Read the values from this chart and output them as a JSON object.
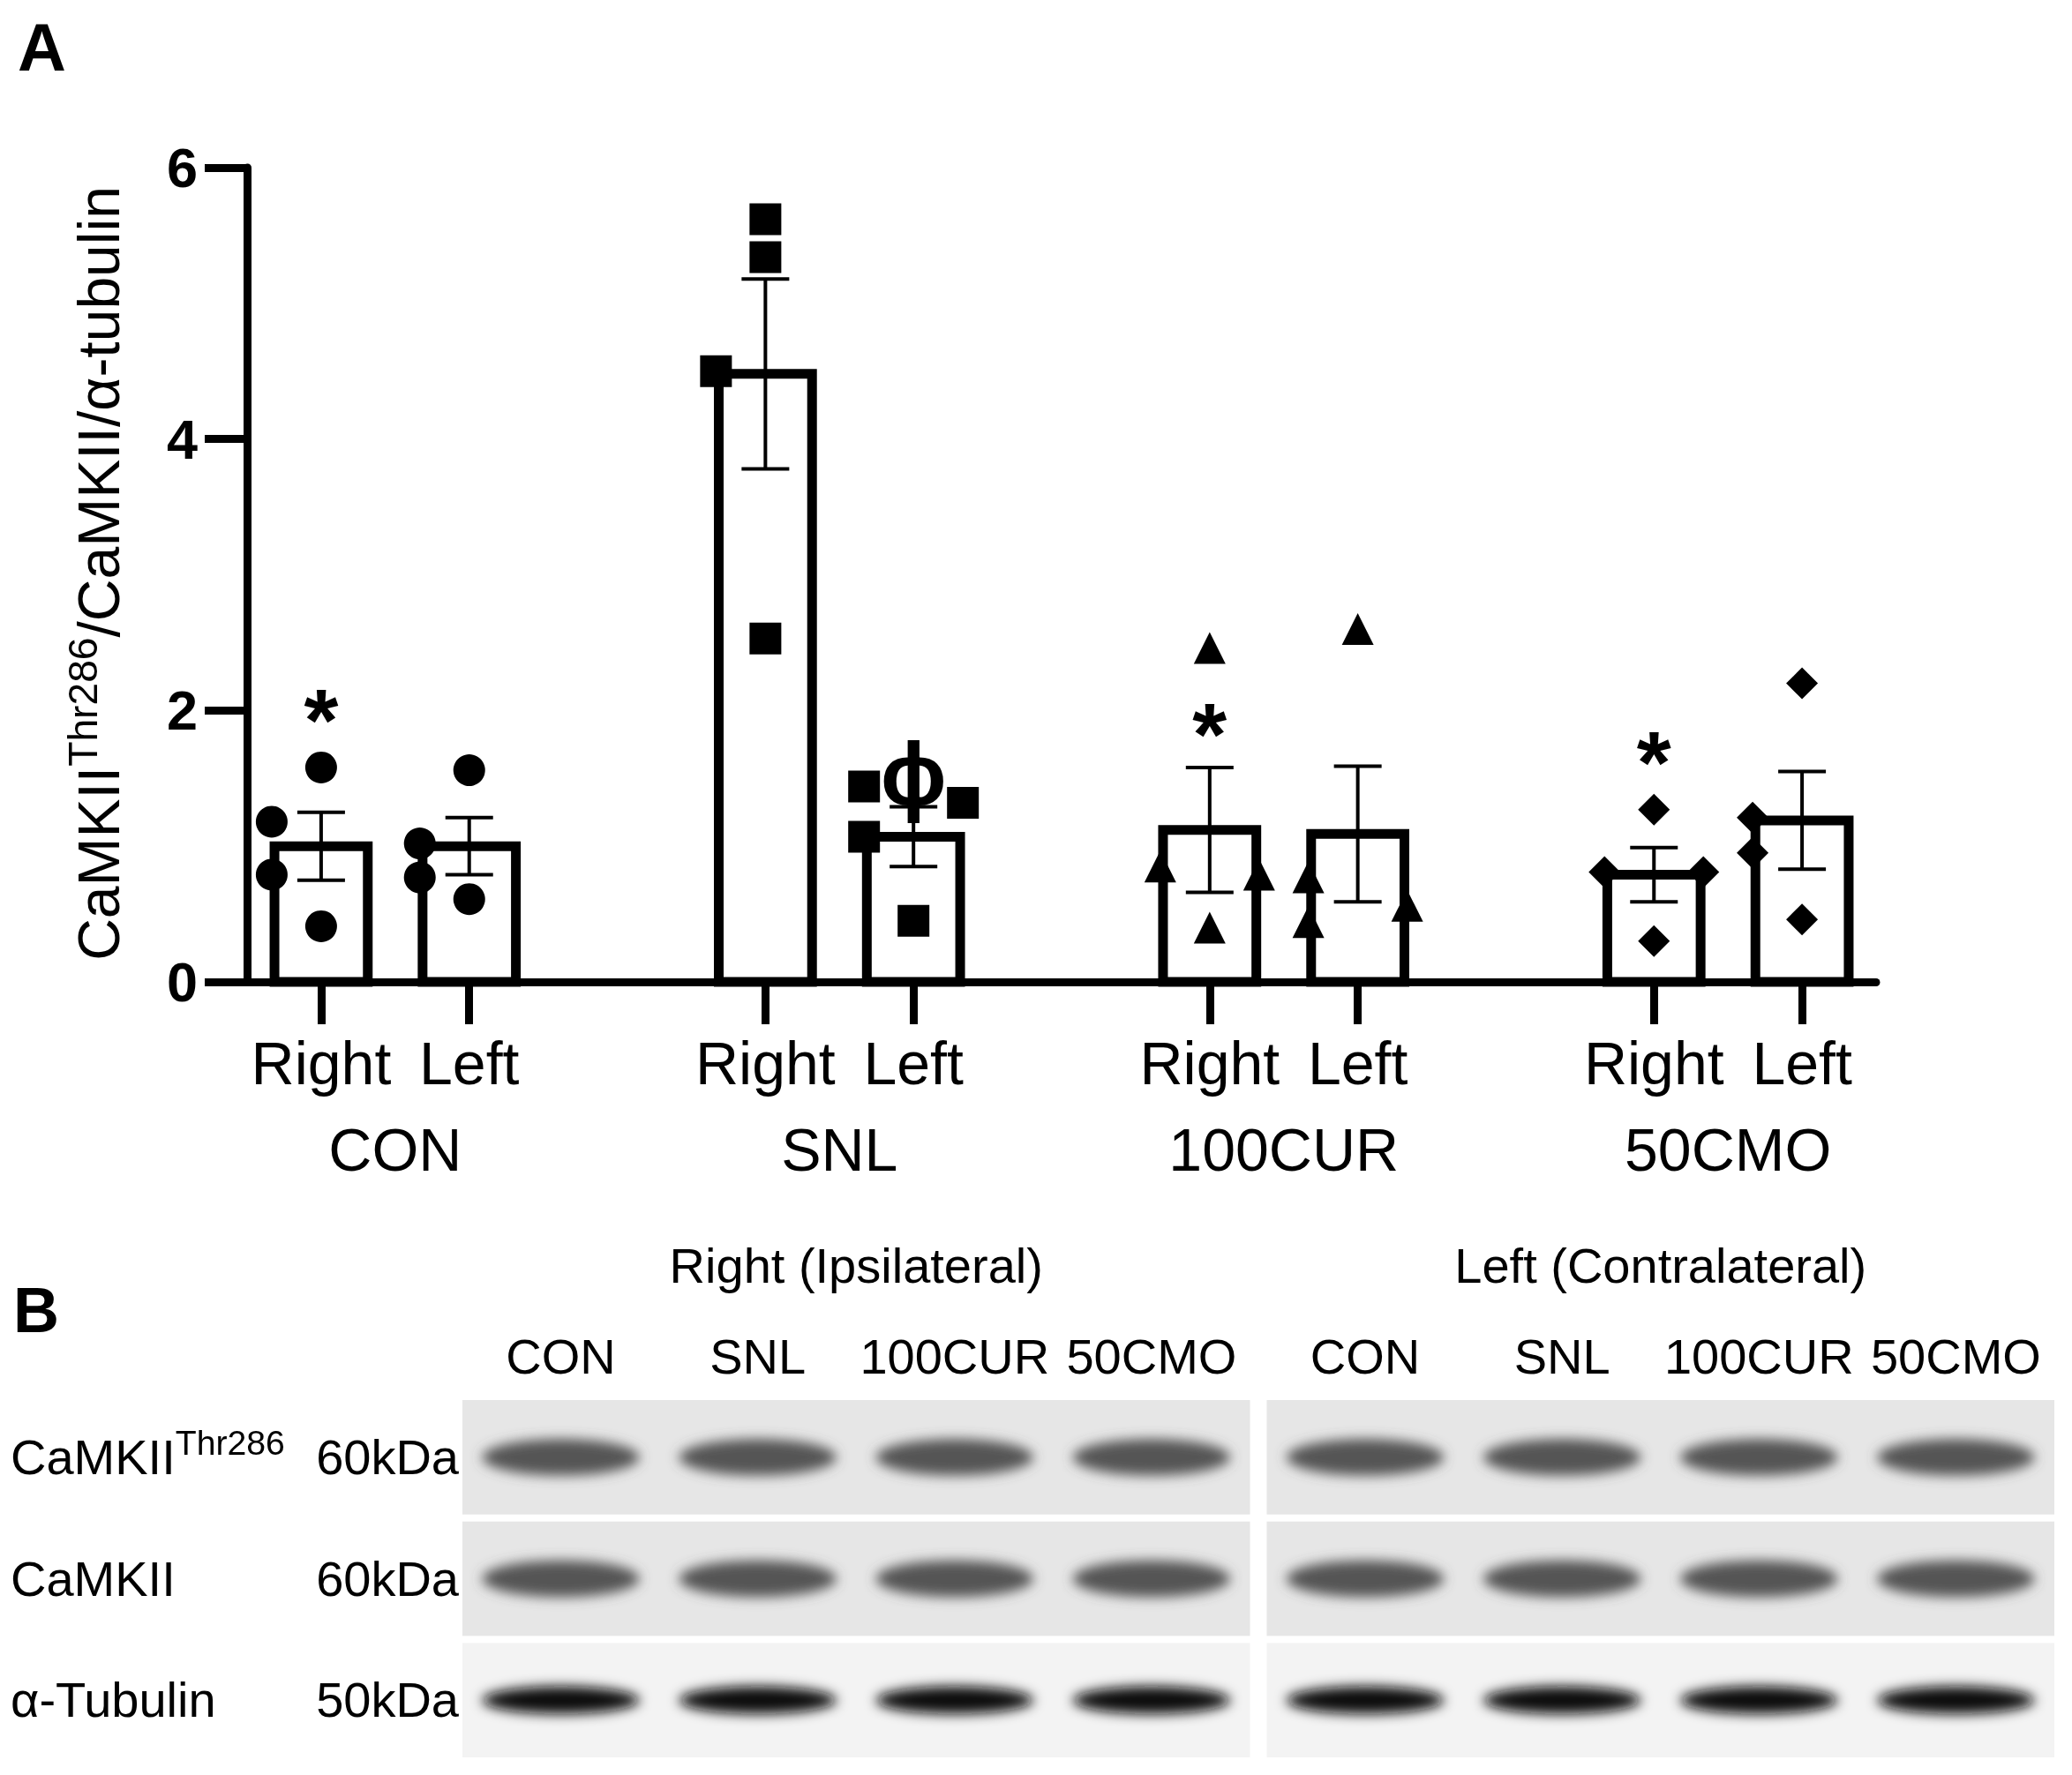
{
  "chart_data": [
    {
      "type": "bar",
      "title": "A",
      "ylabel": "CaMKII$^{Thr286}$/CaMKII/α-tubulin",
      "categories": [
        "Right",
        "Left",
        null,
        "Right",
        "Left",
        null,
        "Right",
        "Left",
        null,
        "Right",
        "Left"
      ],
      "ylim": [
        0,
        6
      ],
      "yticks": [
        0,
        2,
        4,
        6
      ],
      "annotations": [
        "CON",
        "SNL",
        "100CUR",
        "50CMO"
      ],
      "series": [
        {
          "type": "bar",
          "color": "#ffffff",
          "values": [
            1.0,
            1.0,
            null,
            4.48,
            1.07,
            null,
            1.12,
            1.09,
            null,
            0.79,
            1.19
          ],
          "errors": [
            0.25,
            0.21,
            null,
            0.7,
            0.22,
            null,
            0.46,
            0.5,
            null,
            0.2,
            0.36
          ],
          "value_labels": [
            "*",
            null,
            null,
            null,
            "ϕ",
            null,
            "*",
            null,
            null,
            "*",
            null
          ]
        },
        {
          "type": "scatter",
          "marker": "circle",
          "color": "#000000",
          "values": [
            1.58,
            1.56,
            null,
            null,
            null,
            null,
            null,
            null,
            null,
            null,
            null
          ]
        },
        {
          "type": "scatter",
          "marker": "circle",
          "color": "#000000",
          "values": [
            1.18,
            1.02,
            null,
            null,
            null,
            null,
            null,
            null,
            null,
            null,
            null
          ]
        },
        {
          "type": "scatter",
          "marker": "circle",
          "color": "#000000",
          "values": [
            0.79,
            0.77,
            null,
            null,
            null,
            null,
            null,
            null,
            null,
            null,
            null
          ]
        },
        {
          "type": "scatter",
          "marker": "circle",
          "color": "#000000",
          "values": [
            0.41,
            0.61,
            null,
            null,
            null,
            null,
            null,
            null,
            null,
            null,
            null
          ]
        },
        {
          "type": "scatter",
          "marker": "square",
          "color": "#000000",
          "values": [
            null,
            null,
            null,
            5.62,
            1.44,
            null,
            null,
            null,
            null,
            null,
            null
          ]
        },
        {
          "type": "scatter",
          "marker": "square",
          "color": "#000000",
          "values": [
            null,
            null,
            null,
            5.34,
            1.32,
            null,
            null,
            null,
            null,
            null,
            null
          ]
        },
        {
          "type": "scatter",
          "marker": "square",
          "color": "#000000",
          "values": [
            null,
            null,
            null,
            4.5,
            1.07,
            null,
            null,
            null,
            null,
            null,
            null
          ]
        },
        {
          "type": "scatter",
          "marker": "square",
          "color": "#000000",
          "values": [
            null,
            null,
            null,
            2.53,
            0.45,
            null,
            null,
            null,
            null,
            null,
            null
          ]
        },
        {
          "type": "scatter",
          "marker": "triangle",
          "color": "#000000",
          "values": [
            null,
            null,
            null,
            null,
            null,
            null,
            2.46,
            2.6,
            null,
            null,
            null
          ]
        },
        {
          "type": "scatter",
          "marker": "triangle",
          "color": "#000000",
          "values": [
            null,
            null,
            null,
            null,
            null,
            null,
            0.85,
            0.77,
            null,
            null,
            null
          ]
        },
        {
          "type": "scatter",
          "marker": "triangle",
          "color": "#000000",
          "values": [
            null,
            null,
            null,
            null,
            null,
            null,
            0.79,
            0.56,
            null,
            null,
            null
          ]
        },
        {
          "type": "scatter",
          "marker": "triangle",
          "color": "#000000",
          "values": [
            null,
            null,
            null,
            null,
            null,
            null,
            0.4,
            0.44,
            null,
            null,
            null
          ]
        },
        {
          "type": "scatter",
          "marker": "diamond",
          "color": "#000000",
          "values": [
            null,
            null,
            null,
            null,
            null,
            null,
            null,
            null,
            null,
            1.27,
            2.2
          ]
        },
        {
          "type": "scatter",
          "marker": "diamond",
          "color": "#000000",
          "values": [
            null,
            null,
            null,
            null,
            null,
            null,
            null,
            null,
            null,
            0.81,
            1.21
          ]
        },
        {
          "type": "scatter",
          "marker": "diamond",
          "color": "#000000",
          "values": [
            null,
            null,
            null,
            null,
            null,
            null,
            null,
            null,
            null,
            0.81,
            0.95
          ]
        },
        {
          "type": "scatter",
          "marker": "diamond",
          "color": "#000000",
          "values": [
            null,
            null,
            null,
            null,
            null,
            null,
            null,
            null,
            null,
            0.3,
            0.46
          ]
        }
      ]
    },
    {
      "type": "other",
      "title": "B",
      "annotations": [
        "Right (Ipsilateral)",
        "Left (Contralateral)"
      ],
      "categories": [
        "CON",
        "SNL",
        "100CUR",
        "50CMO",
        "CON",
        "SNL",
        "100CUR",
        "50CMO"
      ],
      "y_categories": [
        "CaMKII$^{Thr286}$",
        "CaMKII",
        "α-Tubulin"
      ],
      "y2_categories": [
        "60kDa",
        "60kDa",
        "50kDa"
      ]
    }
  ]
}
